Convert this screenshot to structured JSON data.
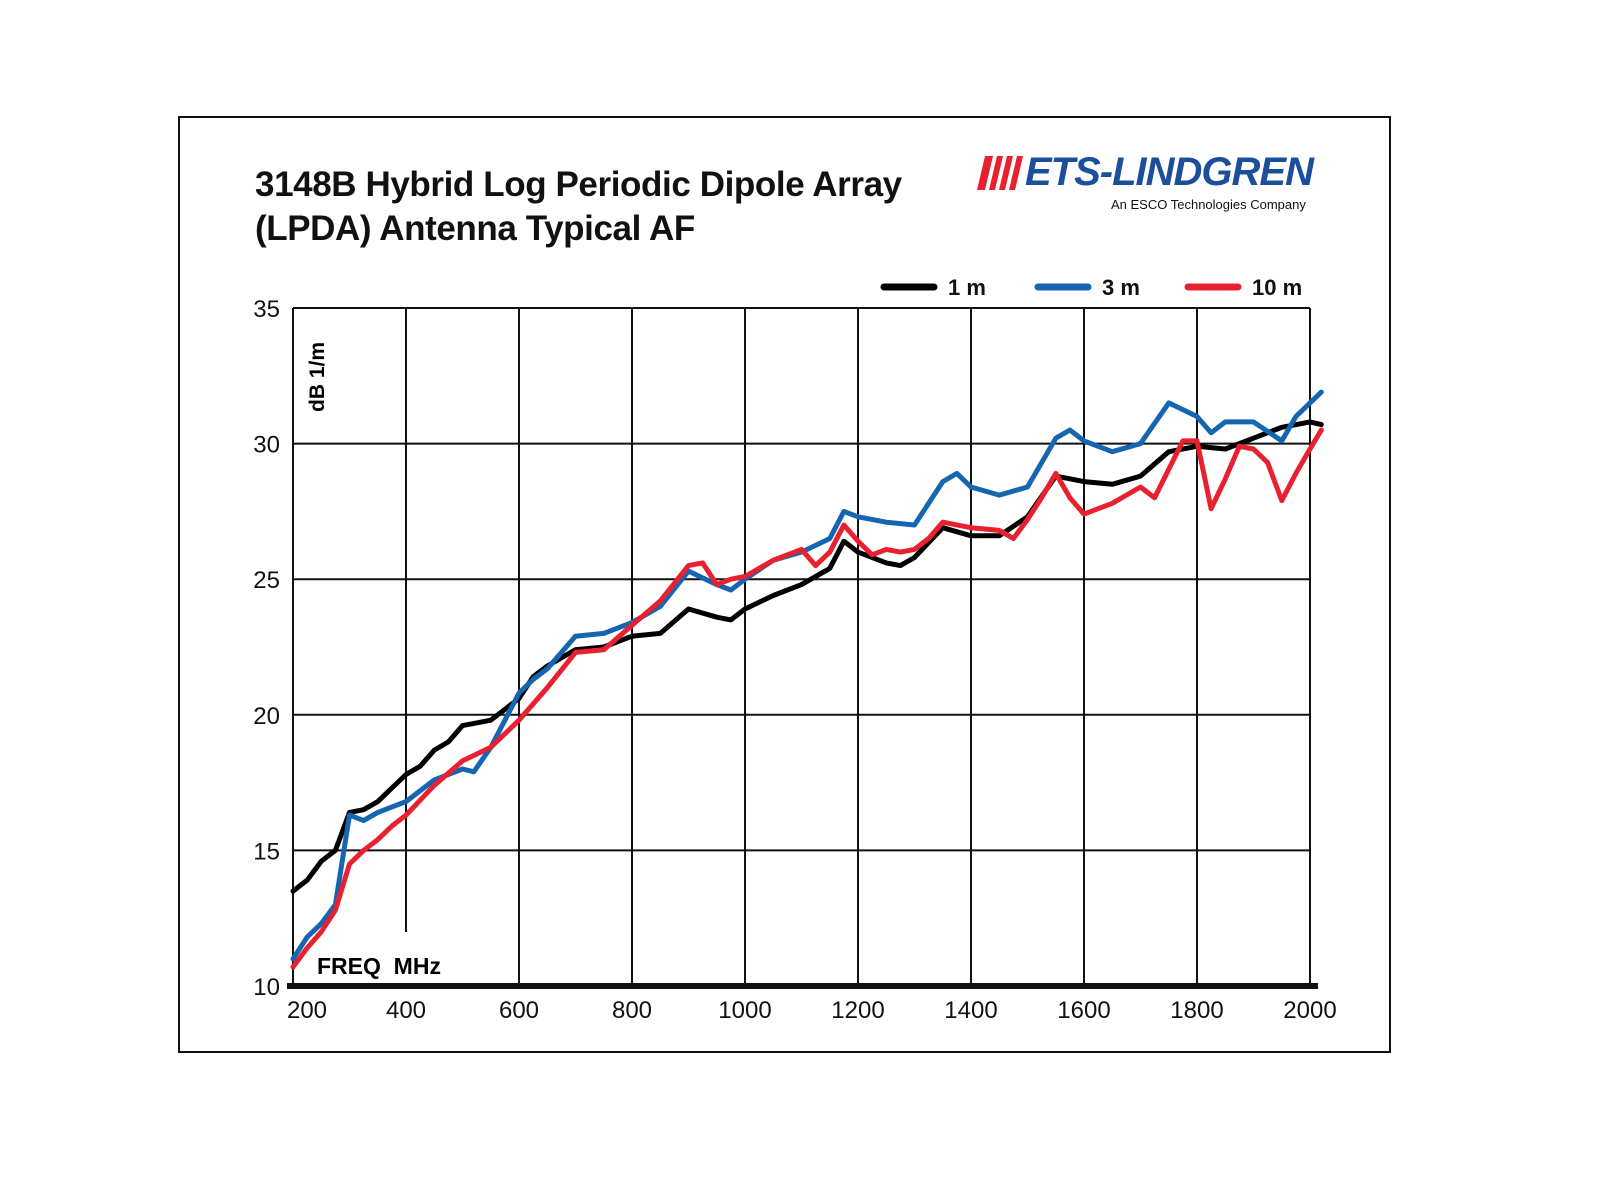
{
  "chart_data": {
    "type": "line",
    "title": "3148B Hybrid Log Periodic Dipole Array\n(LPDA) Antenna Typical AF",
    "xlabel": "FREQ  MHz",
    "ylabel": "dB 1/m",
    "xlim": [
      200,
      2020
    ],
    "ylim": [
      10,
      35
    ],
    "xticks": [
      200,
      400,
      600,
      800,
      1000,
      1200,
      1400,
      1600,
      1800,
      2000
    ],
    "yticks": [
      10,
      15,
      20,
      25,
      30,
      35
    ],
    "grid": true,
    "legend_position": "top-right",
    "series": [
      {
        "name": "1 m",
        "color": "#000000",
        "x": [
          200,
          225,
          250,
          275,
          300,
          325,
          350,
          375,
          400,
          425,
          450,
          475,
          500,
          525,
          550,
          600,
          625,
          650,
          700,
          750,
          800,
          850,
          900,
          950,
          975,
          1000,
          1050,
          1100,
          1150,
          1175,
          1200,
          1250,
          1275,
          1300,
          1350,
          1400,
          1450,
          1500,
          1550,
          1600,
          1650,
          1700,
          1750,
          1800,
          1850,
          1900,
          1950,
          2000,
          2020
        ],
        "y": [
          13.5,
          13.9,
          14.6,
          15.0,
          16.4,
          16.5,
          16.8,
          17.3,
          17.8,
          18.1,
          18.7,
          19.0,
          19.6,
          19.7,
          19.8,
          20.6,
          21.4,
          21.8,
          22.4,
          22.5,
          22.9,
          23.0,
          23.9,
          23.6,
          23.5,
          23.9,
          24.4,
          24.8,
          25.4,
          26.4,
          26.0,
          25.6,
          25.5,
          25.8,
          26.9,
          26.6,
          26.6,
          27.3,
          28.8,
          28.6,
          28.5,
          28.8,
          29.7,
          29.9,
          29.8,
          30.2,
          30.6,
          30.8,
          30.7
        ]
      },
      {
        "name": "3 m",
        "color": "#1565b0",
        "x": [
          200,
          225,
          250,
          275,
          290,
          300,
          325,
          350,
          400,
          450,
          500,
          520,
          550,
          600,
          625,
          650,
          700,
          750,
          800,
          850,
          900,
          950,
          975,
          1000,
          1050,
          1100,
          1150,
          1175,
          1200,
          1250,
          1300,
          1350,
          1375,
          1400,
          1450,
          1500,
          1550,
          1575,
          1600,
          1650,
          1700,
          1750,
          1800,
          1825,
          1850,
          1900,
          1950,
          1975,
          2000,
          2020
        ],
        "y": [
          11.0,
          11.8,
          12.3,
          13.0,
          15.0,
          16.3,
          16.1,
          16.4,
          16.8,
          17.6,
          18.0,
          17.9,
          18.8,
          20.8,
          21.3,
          21.7,
          22.9,
          23.0,
          23.4,
          24.0,
          25.3,
          24.8,
          24.6,
          25.0,
          25.7,
          26.0,
          26.5,
          27.5,
          27.3,
          27.1,
          27.0,
          28.6,
          28.9,
          28.4,
          28.1,
          28.4,
          30.2,
          30.5,
          30.1,
          29.7,
          30.0,
          31.5,
          31.0,
          30.4,
          30.8,
          30.8,
          30.1,
          31.0,
          31.5,
          31.9
        ]
      },
      {
        "name": "10 m",
        "color": "#e8202f",
        "x": [
          200,
          225,
          250,
          275,
          300,
          325,
          350,
          375,
          400,
          450,
          500,
          550,
          600,
          650,
          700,
          750,
          800,
          850,
          900,
          925,
          950,
          975,
          1000,
          1050,
          1100,
          1125,
          1150,
          1175,
          1200,
          1225,
          1250,
          1275,
          1300,
          1325,
          1350,
          1400,
          1450,
          1475,
          1500,
          1525,
          1550,
          1575,
          1600,
          1625,
          1650,
          1700,
          1725,
          1775,
          1800,
          1825,
          1850,
          1875,
          1900,
          1925,
          1950,
          1975,
          2000,
          2020
        ],
        "y": [
          10.7,
          11.4,
          12.0,
          12.8,
          14.5,
          15.0,
          15.4,
          15.9,
          16.3,
          17.4,
          18.3,
          18.8,
          19.8,
          21.0,
          22.3,
          22.4,
          23.3,
          24.2,
          25.5,
          25.6,
          24.8,
          25.0,
          25.1,
          25.7,
          26.1,
          25.5,
          26.0,
          27.0,
          26.4,
          25.9,
          26.1,
          26.0,
          26.1,
          26.5,
          27.1,
          26.9,
          26.8,
          26.5,
          27.2,
          28.0,
          28.9,
          28.0,
          27.4,
          27.6,
          27.8,
          28.4,
          28.0,
          30.1,
          30.1,
          27.6,
          28.7,
          29.9,
          29.8,
          29.3,
          27.9,
          28.9,
          29.8,
          30.5
        ]
      }
    ]
  },
  "logo": {
    "name": "ETS-LINDGREN",
    "tagline": "An ESCO Technologies Company"
  }
}
